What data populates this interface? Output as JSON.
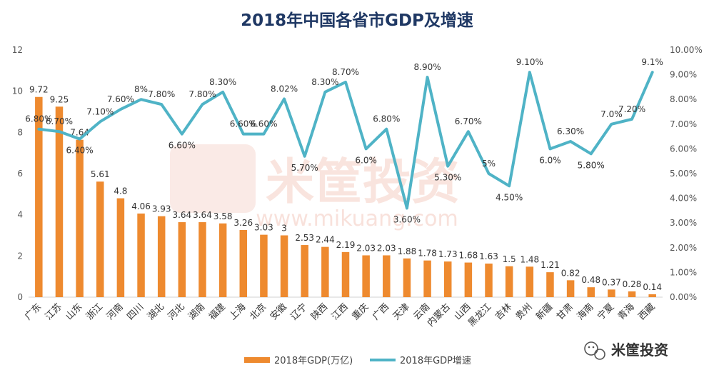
{
  "chart_data": {
    "type": "bar",
    "title": "2018年中国各省市GDP及增速",
    "categories": [
      "广东",
      "江苏",
      "山东",
      "浙江",
      "河南",
      "四川",
      "湖北",
      "河北",
      "湖南",
      "福建",
      "上海",
      "北京",
      "安徽",
      "辽宁",
      "陕西",
      "江西",
      "重庆",
      "广西",
      "天津",
      "云南",
      "内蒙古",
      "山西",
      "黑龙江",
      "吉林",
      "贵州",
      "新疆",
      "甘肃",
      "海南",
      "宁夏",
      "青海",
      "西藏"
    ],
    "series": [
      {
        "name": "2018年GDP(万亿)",
        "type": "bar",
        "axis": "left",
        "color": "#ee8a2f",
        "values": [
          9.72,
          9.25,
          7.64,
          5.61,
          4.8,
          4.06,
          3.93,
          3.64,
          3.64,
          3.58,
          3.26,
          3.03,
          3,
          2.53,
          2.44,
          2.19,
          2.03,
          2.03,
          1.88,
          1.78,
          1.73,
          1.68,
          1.63,
          1.5,
          1.48,
          1.21,
          0.82,
          0.48,
          0.37,
          0.28,
          0.14
        ],
        "labels": [
          "9.72",
          "9.25",
          "7.64",
          "5.61",
          "4.8",
          "4.06",
          "3.93",
          "3.64",
          "3.64",
          "3.58",
          "3.26",
          "3.03",
          "3",
          "2.53",
          "2.44",
          "2.19",
          "2.03",
          "2.03",
          "1.88",
          "1.78",
          "1.73",
          "1.68",
          "1.63",
          "1.5",
          "1.48",
          "1.21",
          "0.82",
          "0.48",
          "0.37",
          "0.28",
          "0.14"
        ]
      },
      {
        "name": "2018年GDP增速",
        "type": "line",
        "axis": "right",
        "color": "#4fb3c6",
        "values": [
          6.8,
          6.7,
          6.4,
          7.1,
          7.6,
          8.0,
          7.8,
          6.6,
          7.8,
          8.3,
          6.6,
          6.6,
          8.02,
          5.7,
          8.3,
          8.7,
          6.0,
          6.8,
          3.6,
          8.9,
          5.3,
          6.7,
          5.0,
          4.5,
          9.1,
          6.0,
          6.3,
          5.8,
          7.0,
          7.2,
          9.1
        ],
        "labels": [
          "6.80%",
          "6.70%",
          "6.40%",
          "7.10%",
          "7.60%",
          "8%",
          "7.80%",
          "6.60%",
          "7.80%",
          "8.30%",
          "6.60%",
          "6.60%",
          "8.02%",
          "5.70%",
          "8.30%",
          "8.70%",
          "6.0%",
          "6.80%",
          "3.60%",
          "8.90%",
          "5.30%",
          "6.70%",
          "5%",
          "4.50%",
          "9.10%",
          "6.0%",
          "6.30%",
          "5.80%",
          "7.0%",
          "7.20%",
          "9.1%"
        ]
      }
    ],
    "y_left": {
      "min": 0,
      "max": 12,
      "ticks": [
        "0",
        "2",
        "4",
        "6",
        "8",
        "10",
        "12"
      ]
    },
    "y_right": {
      "min": 0,
      "max": 10,
      "ticks": [
        "0.00%",
        "1.00%",
        "2.00%",
        "3.00%",
        "4.00%",
        "5.00%",
        "6.00%",
        "7.00%",
        "8.00%",
        "9.00%",
        "10.00%"
      ]
    },
    "grid": false,
    "legend": "bottom-center"
  },
  "watermark": {
    "brand": "米筐投资",
    "url": "www.mikuang.com"
  },
  "branding": {
    "name": "米筐投资"
  }
}
